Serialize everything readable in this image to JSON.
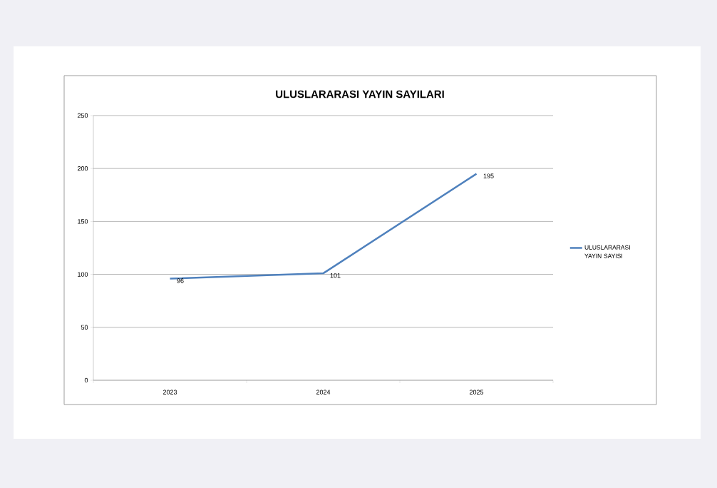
{
  "chart_data": {
    "type": "line",
    "title": "ULUSLARARASI YAYIN SAYILARI",
    "categories": [
      "2023",
      "2024",
      "2025"
    ],
    "series": [
      {
        "name": "ULUSLARARASI YAYIN SAYISI",
        "color": "#4f81bd",
        "values": [
          96,
          101,
          195
        ]
      }
    ],
    "ylim": [
      0,
      250
    ],
    "yticks": [
      0,
      50,
      100,
      150,
      200,
      250
    ],
    "grid": "y",
    "legend": "right",
    "data_labels": true,
    "marker": "none",
    "line_style": "solid"
  }
}
